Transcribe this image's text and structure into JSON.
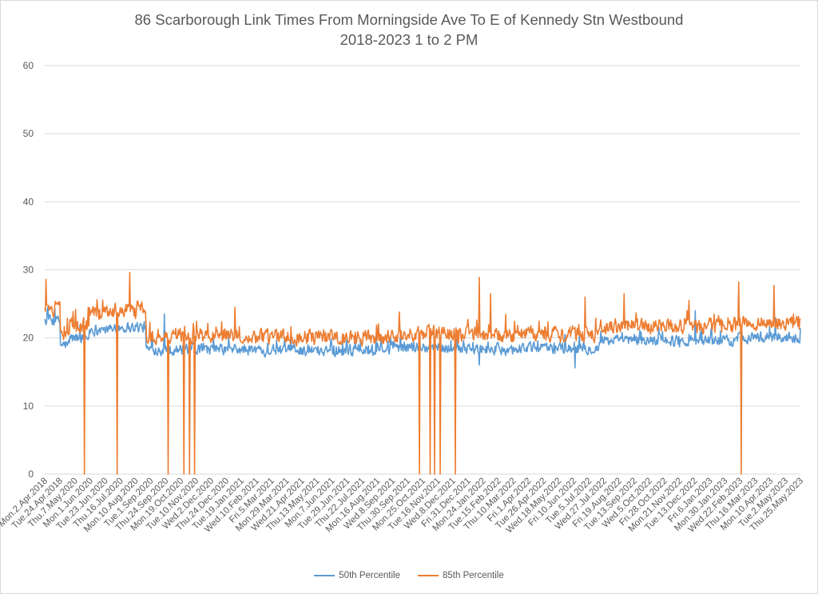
{
  "chart_data": {
    "type": "line",
    "title": "86 Scarborough Link Times From Morningside Ave To E of Kennedy Stn Westbound",
    "subtitle": "2018-2023 1 to 2 PM",
    "xlabel": "",
    "ylabel": "",
    "ylim": [
      0,
      60
    ],
    "yticks": [
      0,
      10,
      20,
      30,
      40,
      50,
      60
    ],
    "grid": true,
    "legend_position": "bottom",
    "x_tick_labels": [
      "Mon.2.Apr.2018",
      "Tue.24.Apr.2018",
      "Thu.7.May.2020",
      "Mon.1.Jun.2020",
      "Tue.23.Jun.2020",
      "Thu.16.Jul.2020",
      "Mon.10.Aug.2020",
      "Tue.1.Sep.2020",
      "Thu.24.Sep.2020",
      "Mon.19.Oct.2020",
      "Tue.10.Nov.2020",
      "Wed.2.Dec.2020",
      "Thu.24.Dec.2020",
      "Tue.19.Jan.2021",
      "Wed.10.Feb.2021",
      "Fri.5.Mar.2021",
      "Mon.29.Mar.2021",
      "Wed.21.Apr.2021",
      "Thu.13.May.2021",
      "Mon.7.Jun.2021",
      "Tue.29.Jun.2021",
      "Thu.22.Jul.2021",
      "Mon.16.Aug.2021",
      "Wed.8.Sep.2021",
      "Thu.30.Sep.2021",
      "Mon.25.Oct.2021",
      "Tue.16.Nov.2021",
      "Wed.8.Dec.2021",
      "Fri.31.Dec.2021",
      "Mon.24.Jan.2022",
      "Tue.15.Feb.2022",
      "Thu.10.Mar.2022",
      "Fri.1.Apr.2022",
      "Tue.26.Apr.2022",
      "Wed.18.May.2022",
      "Fri.10.Jun.2022",
      "Tue.5.Jul.2022",
      "Wed.27.Jul.2022",
      "Fri.19.Aug.2022",
      "Tue.13.Sep.2022",
      "Wed.5.Oct.2022",
      "Fri.28.Oct.2022",
      "Mon.21.Nov.2022",
      "Tue.13.Dec.2022",
      "Fri.6.Jan.2023",
      "Mon.30.Jan.2023",
      "Wed.22.Feb.2023",
      "Thu.16.Mar.2023",
      "Mon.10.Apr.2023",
      "Tue.2.May.2023",
      "Thu.25.May.2023"
    ],
    "n_points": 1201,
    "series": [
      {
        "name": "50th Percentile",
        "color": "#5B9BD5",
        "segment_means": [
          {
            "from": 0,
            "to": 24,
            "mean": 22.5
          },
          {
            "from": 25,
            "to": 39,
            "mean": 19.0
          },
          {
            "from": 40,
            "to": 70,
            "mean": 20.0
          },
          {
            "from": 71,
            "to": 110,
            "mean": 21.2
          },
          {
            "from": 111,
            "to": 160,
            "mean": 21.6
          },
          {
            "from": 161,
            "to": 310,
            "mean": 18.3
          },
          {
            "from": 311,
            "to": 550,
            "mean": 18.2
          },
          {
            "from": 551,
            "to": 680,
            "mean": 18.6
          },
          {
            "from": 681,
            "to": 750,
            "mean": 18.3
          },
          {
            "from": 751,
            "to": 880,
            "mean": 18.5
          },
          {
            "from": 881,
            "to": 1100,
            "mean": 19.6
          },
          {
            "from": 1101,
            "to": 1200,
            "mean": 20.1
          }
        ],
        "noise_amplitude": 1.1,
        "spikes": [
          {
            "index": 190,
            "value": 23.5
          },
          {
            "index": 565,
            "value": 21.0
          },
          {
            "index": 690,
            "value": 16.0
          },
          {
            "index": 842,
            "value": 15.6
          },
          {
            "index": 1033,
            "value": 24.0
          },
          {
            "index": 1160,
            "value": 23.0
          }
        ]
      },
      {
        "name": "85th Percentile",
        "color": "#ED7D31",
        "segment_means": [
          {
            "from": 0,
            "to": 24,
            "mean": 24.2
          },
          {
            "from": 25,
            "to": 39,
            "mean": 20.5
          },
          {
            "from": 40,
            "to": 70,
            "mean": 21.8
          },
          {
            "from": 71,
            "to": 110,
            "mean": 23.5
          },
          {
            "from": 111,
            "to": 160,
            "mean": 24.2
          },
          {
            "from": 161,
            "to": 310,
            "mean": 20.4
          },
          {
            "from": 311,
            "to": 550,
            "mean": 20.1
          },
          {
            "from": 551,
            "to": 680,
            "mean": 20.6
          },
          {
            "from": 681,
            "to": 750,
            "mean": 20.3
          },
          {
            "from": 751,
            "to": 880,
            "mean": 20.6
          },
          {
            "from": 881,
            "to": 1100,
            "mean": 21.7
          },
          {
            "from": 1101,
            "to": 1200,
            "mean": 22.3
          }
        ],
        "noise_amplitude": 1.5,
        "spikes": [
          {
            "index": 2,
            "value": 28.6
          },
          {
            "index": 135,
            "value": 29.6
          },
          {
            "index": 302,
            "value": 24.5
          },
          {
            "index": 690,
            "value": 28.9
          },
          {
            "index": 708,
            "value": 26.5
          },
          {
            "index": 858,
            "value": 26.0
          },
          {
            "index": 920,
            "value": 26.5
          },
          {
            "index": 1023,
            "value": 25.5
          },
          {
            "index": 1102,
            "value": 28.2
          },
          {
            "index": 1158,
            "value": 27.7
          }
        ],
        "drops_to_zero": [
          63,
          115,
          196,
          221,
          230,
          238,
          595,
          612,
          619,
          628,
          652,
          1106
        ]
      }
    ]
  }
}
